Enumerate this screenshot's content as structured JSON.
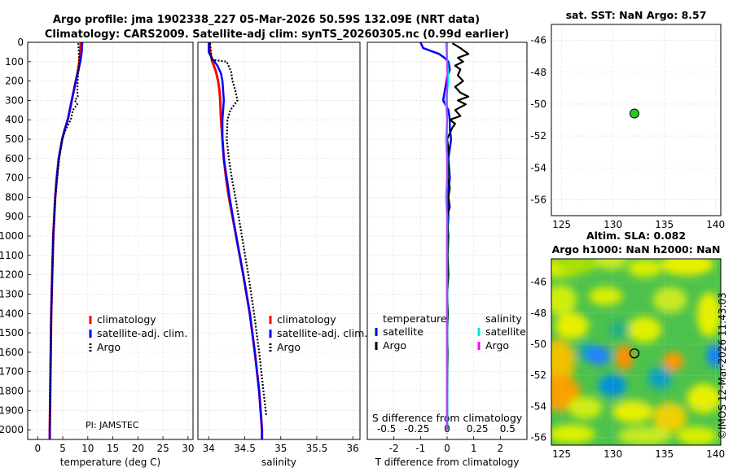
{
  "title": {
    "line1": "Argo profile: jma 1902338_227 05-Mar-2026 50.59S 132.09E (NRT data)",
    "line2": "Climatology: CARS2009. Satellite-adj clim: synTS_20260305.nc (0.99d earlier)"
  },
  "pi_label": "PI: JAMSTEC",
  "watermark": "©IMOS 12-Mar-2026 11:43:03",
  "colors": {
    "climatology": "#ff0000",
    "satellite": "#0000ff",
    "argo": "#000000",
    "sat_diff_sal": "#00e5ee",
    "argo_diff_sal": "#ff00ff",
    "marker": "#22cc22"
  },
  "chart_data": [
    {
      "id": "temperature",
      "type": "line",
      "xlabel": "temperature (deg C)",
      "ylabel": "",
      "xlim": [
        -2,
        31
      ],
      "ylim": [
        2050,
        0
      ],
      "xticks": [
        0,
        5,
        10,
        15,
        20,
        25,
        30
      ],
      "yticks": [
        0,
        100,
        200,
        300,
        400,
        500,
        600,
        700,
        800,
        900,
        1000,
        1100,
        1200,
        1300,
        1400,
        1500,
        1600,
        1700,
        1800,
        1900,
        2000
      ],
      "legend": [
        "climatology",
        "satellite-adj. clim.",
        "Argo"
      ],
      "series": [
        {
          "name": "climatology",
          "depth": [
            0,
            50,
            100,
            150,
            200,
            250,
            300,
            350,
            400,
            450,
            500,
            600,
            700,
            800,
            900,
            1000,
            1200,
            1400,
            1600,
            1800,
            2000,
            2050
          ],
          "values": [
            8.6,
            8.5,
            8.3,
            8.0,
            7.6,
            7.2,
            6.8,
            6.4,
            6.0,
            5.4,
            4.9,
            4.2,
            3.8,
            3.5,
            3.3,
            3.1,
            2.9,
            2.7,
            2.6,
            2.5,
            2.4,
            2.4
          ]
        },
        {
          "name": "satellite-adj. clim.",
          "depth": [
            0,
            50,
            100,
            150,
            200,
            250,
            300,
            350,
            400,
            450,
            500,
            600,
            700,
            800,
            900,
            1000,
            1200,
            1400,
            1600,
            1800,
            2000,
            2050
          ],
          "values": [
            8.9,
            8.8,
            8.5,
            8.1,
            7.6,
            7.2,
            6.8,
            6.4,
            6.0,
            5.4,
            4.9,
            4.2,
            3.8,
            3.5,
            3.3,
            3.1,
            2.9,
            2.7,
            2.6,
            2.5,
            2.4,
            2.4
          ]
        },
        {
          "name": "Argo",
          "depth": [
            5,
            50,
            100,
            150,
            200,
            250,
            280,
            300,
            320,
            350,
            400,
            450,
            500,
            600,
            700,
            800,
            900,
            1000,
            1200,
            1400,
            1600,
            1800,
            2000
          ],
          "values": [
            8.1,
            8.2,
            8.3,
            8.1,
            8.0,
            7.9,
            8.0,
            7.4,
            7.9,
            7.0,
            6.6,
            5.6,
            4.9,
            4.3,
            3.9,
            3.5,
            3.3,
            3.1,
            2.9,
            2.7,
            2.6,
            2.5,
            2.4
          ]
        }
      ]
    },
    {
      "id": "salinity",
      "type": "line",
      "xlabel": "salinity",
      "xlim": [
        33.85,
        36.1
      ],
      "ylim": [
        2050,
        0
      ],
      "xticks": [
        34,
        34.5,
        35,
        35.5,
        36
      ],
      "xticklabels": [
        "34",
        "34.5",
        "35",
        "35.5",
        "36"
      ],
      "legend": [
        "climatology",
        "satellite-adj. clim.",
        "Argo"
      ],
      "series": [
        {
          "name": "climatology",
          "depth": [
            0,
            50,
            100,
            150,
            200,
            250,
            300,
            400,
            500,
            600,
            700,
            800,
            1000,
            1200,
            1400,
            1600,
            1800,
            2000,
            2050
          ],
          "values": [
            34.01,
            34.02,
            34.05,
            34.1,
            34.13,
            34.15,
            34.16,
            34.17,
            34.19,
            34.21,
            34.24,
            34.28,
            34.38,
            34.48,
            34.57,
            34.64,
            34.7,
            34.74,
            34.74
          ]
        },
        {
          "name": "satellite-adj. clim.",
          "depth": [
            0,
            50,
            80,
            120,
            160,
            200,
            250,
            300,
            400,
            500,
            600,
            700,
            800,
            1000,
            1200,
            1400,
            1600,
            1800,
            2000,
            2050
          ],
          "values": [
            34.0,
            34.0,
            34.04,
            34.12,
            34.17,
            34.19,
            34.2,
            34.21,
            34.19,
            34.19,
            34.21,
            34.25,
            34.29,
            34.38,
            34.48,
            34.57,
            34.64,
            34.7,
            34.74,
            34.74
          ]
        },
        {
          "name": "Argo",
          "depth": [
            5,
            50,
            90,
            100,
            150,
            200,
            250,
            300,
            350,
            400,
            500,
            600,
            700,
            800,
            1000,
            1200,
            1400,
            1600,
            1800,
            1930
          ],
          "values": [
            34.02,
            34.03,
            34.04,
            34.25,
            34.31,
            34.33,
            34.37,
            34.4,
            34.3,
            34.26,
            34.25,
            34.28,
            34.32,
            34.37,
            34.46,
            34.55,
            34.63,
            34.7,
            34.76,
            34.8
          ]
        }
      ]
    },
    {
      "id": "difference",
      "type": "line",
      "xlabel": "T difference from climatology",
      "xlabel_top": "S difference from climatology",
      "xlim": [
        -3,
        3
      ],
      "ylim": [
        2050,
        0
      ],
      "xticks": [
        -2,
        -1,
        0,
        1,
        2
      ],
      "xticklabels": [
        "-2",
        "-1",
        "0",
        "1",
        "2"
      ],
      "sticks": [
        -0.5,
        -0.25,
        0,
        0.25,
        0.5
      ],
      "sticklabels": [
        "-0.5",
        "-0.25",
        "0",
        "0.25",
        "0.5"
      ],
      "legend_temperature_title": "temperature",
      "legend_salinity_title": "salinity",
      "legend_temperature": [
        "satellite",
        "Argo"
      ],
      "legend_salinity": [
        "satellite",
        "Argo"
      ],
      "series": [
        {
          "name": "T satellite",
          "depth": [
            0,
            30,
            60,
            80,
            100,
            140,
            180,
            220,
            260,
            300,
            350,
            400,
            450,
            500,
            600,
            700,
            800,
            900,
            1000,
            1200,
            1400,
            1600,
            1800,
            2000
          ],
          "values": [
            -1.0,
            -0.9,
            -0.3,
            -0.1,
            0.05,
            0.1,
            0.0,
            -0.05,
            -0.1,
            -0.15,
            0.05,
            0.1,
            0.1,
            0.15,
            0.05,
            0.1,
            0.02,
            0.05,
            0.0,
            0.0,
            0.0,
            0.0,
            0.0,
            0.0
          ]
        },
        {
          "name": "T Argo",
          "depth": [
            5,
            30,
            60,
            80,
            100,
            120,
            140,
            170,
            200,
            230,
            260,
            280,
            300,
            320,
            350,
            380,
            400,
            420,
            440,
            500,
            550,
            600,
            650,
            700,
            750,
            800,
            850,
            900,
            1000,
            1100,
            1200,
            1300,
            1400,
            1500,
            1600,
            1800,
            2000
          ],
          "values": [
            0.2,
            0.5,
            0.8,
            0.4,
            0.6,
            0.3,
            0.5,
            0.4,
            0.6,
            0.3,
            0.5,
            0.8,
            0.4,
            0.7,
            0.3,
            0.5,
            0.1,
            0.3,
            0.2,
            0.0,
            0.05,
            0.0,
            0.05,
            0.02,
            0.1,
            0.05,
            0.1,
            0.0,
            0.05,
            0.02,
            0.05,
            0.0,
            0.03,
            0.0,
            0.02,
            0.0,
            0.0
          ]
        },
        {
          "name": "S satellite",
          "depth": [
            0,
            100,
            200,
            300,
            400,
            500,
            600,
            700,
            800,
            900,
            1000,
            1200,
            1400,
            1600,
            1800,
            2000
          ],
          "values": [
            -0.01,
            0.0,
            0.01,
            -0.01,
            0.0,
            -0.01,
            0.0,
            0.0,
            -0.01,
            0.0,
            0.0,
            0.0,
            0.0,
            0.0,
            0.0,
            0.0
          ]
        },
        {
          "name": "S Argo",
          "depth": [
            0,
            500,
            1000,
            1500,
            2000
          ],
          "values": [
            0.0,
            0.0,
            0.0,
            0.0,
            0.0
          ]
        }
      ]
    },
    {
      "id": "sst_map",
      "type": "scatter",
      "title": "sat. SST: NaN Argo: 8.57",
      "xlim": [
        124,
        140.5
      ],
      "ylim": [
        -57,
        -45
      ],
      "xticks": [
        125,
        130,
        135,
        140
      ],
      "yticks": [
        -46,
        -48,
        -50,
        -52,
        -54,
        -56
      ],
      "point": {
        "lon": 132.09,
        "lat": -50.59
      }
    },
    {
      "id": "sla_map",
      "type": "heatmap",
      "title_line1": "Altim. SLA: 0.082",
      "title_line2": "Argo h1000: NaN h2000: NaN",
      "xlim": [
        124,
        140.5
      ],
      "ylim": [
        -56.5,
        -44.5
      ],
      "xticks": [
        125,
        130,
        135,
        140
      ],
      "yticks": [
        -46,
        -48,
        -50,
        -52,
        -54,
        -56
      ],
      "point": {
        "lon": 132.09,
        "lat": -50.59
      }
    }
  ]
}
